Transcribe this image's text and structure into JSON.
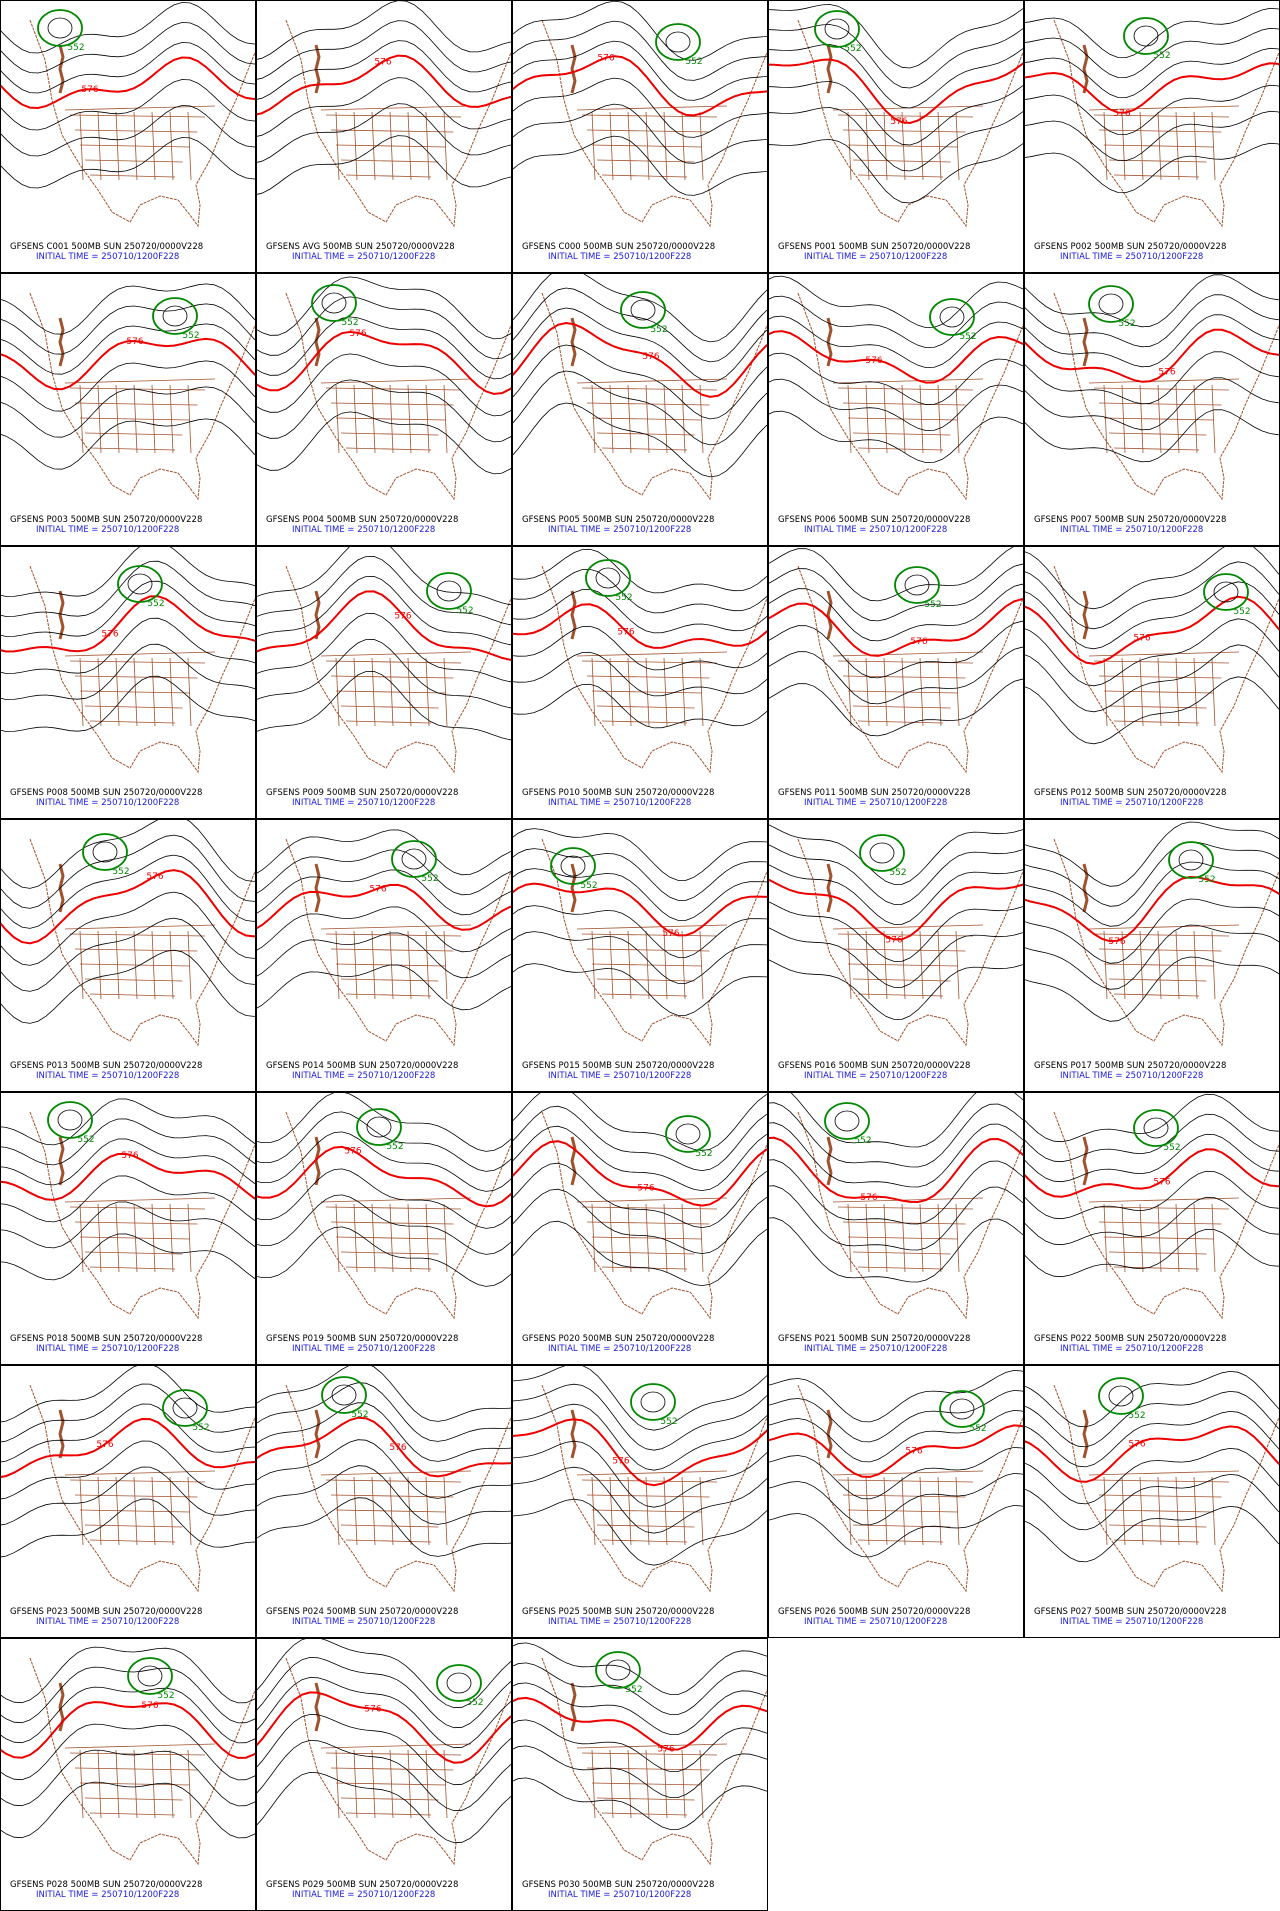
{
  "panels": [
    {
      "title": "GFSENS C001 500MB SUN 250720/0000V228",
      "init": "INITIAL TIME = 250710/1200F228",
      "contour_labels": [
        "576",
        "552"
      ]
    },
    {
      "title": "GFSENS AVG 500MB SUN 250720/0000V228",
      "init": "INITIAL TIME = 250710/1200F228",
      "contour_labels": [
        "576"
      ]
    },
    {
      "title": "GFSENS C000 500MB SUN 250720/0000V228",
      "init": "INITIAL TIME = 250710/1200F228",
      "contour_labels": [
        "576",
        "552"
      ]
    },
    {
      "title": "GFSENS P001 500MB SUN 250720/0000V228",
      "init": "INITIAL TIME = 250710/1200F228",
      "contour_labels": [
        "576",
        "552"
      ]
    },
    {
      "title": "GFSENS P002 500MB SUN 250720/0000V228",
      "init": "INITIAL TIME = 250710/1200F228",
      "contour_labels": [
        "576",
        "552"
      ]
    },
    {
      "title": "GFSENS P003 500MB SUN 250720/0000V228",
      "init": "INITIAL TIME = 250710/1200F228",
      "contour_labels": [
        "576",
        "552"
      ]
    },
    {
      "title": "GFSENS P004 500MB SUN 250720/0000V228",
      "init": "INITIAL TIME = 250710/1200F228",
      "contour_labels": [
        "576",
        "552"
      ]
    },
    {
      "title": "GFSENS P005 500MB SUN 250720/0000V228",
      "init": "INITIAL TIME = 250710/1200F228",
      "contour_labels": [
        "576",
        "552"
      ]
    },
    {
      "title": "GFSENS P006 500MB SUN 250720/0000V228",
      "init": "INITIAL TIME = 250710/1200F228",
      "contour_labels": [
        "576",
        "552"
      ]
    },
    {
      "title": "GFSENS P007 500MB SUN 250720/0000V228",
      "init": "INITIAL TIME = 250710/1200F228",
      "contour_labels": [
        "576",
        "552"
      ]
    },
    {
      "title": "GFSENS P008 500MB SUN 250720/0000V228",
      "init": "INITIAL TIME = 250710/1200F228",
      "contour_labels": [
        "576",
        "552"
      ]
    },
    {
      "title": "GFSENS P009 500MB SUN 250720/0000V228",
      "init": "INITIAL TIME = 250710/1200F228",
      "contour_labels": [
        "576",
        "552"
      ]
    },
    {
      "title": "GFSENS P010 500MB SUN 250720/0000V228",
      "init": "INITIAL TIME = 250710/1200F228",
      "contour_labels": [
        "576",
        "552"
      ]
    },
    {
      "title": "GFSENS P011 500MB SUN 250720/0000V228",
      "init": "INITIAL TIME = 250710/1200F228",
      "contour_labels": [
        "576",
        "552"
      ]
    },
    {
      "title": "GFSENS P012 500MB SUN 250720/0000V228",
      "init": "INITIAL TIME = 250710/1200F228",
      "contour_labels": [
        "576",
        "552"
      ]
    },
    {
      "title": "GFSENS P013 500MB SUN 250720/0000V228",
      "init": "INITIAL TIME = 250710/1200F228",
      "contour_labels": [
        "576",
        "552"
      ]
    },
    {
      "title": "GFSENS P014 500MB SUN 250720/0000V228",
      "init": "INITIAL TIME = 250710/1200F228",
      "contour_labels": [
        "576",
        "552"
      ]
    },
    {
      "title": "GFSENS P015 500MB SUN 250720/0000V228",
      "init": "INITIAL TIME = 250710/1200F228",
      "contour_labels": [
        "576",
        "552"
      ]
    },
    {
      "title": "GFSENS P016 500MB SUN 250720/0000V228",
      "init": "INITIAL TIME = 250710/1200F228",
      "contour_labels": [
        "576",
        "552"
      ]
    },
    {
      "title": "GFSENS P017 500MB SUN 250720/0000V228",
      "init": "INITIAL TIME = 250710/1200F228",
      "contour_labels": [
        "576",
        "552"
      ]
    },
    {
      "title": "GFSENS P018 500MB SUN 250720/0000V228",
      "init": "INITIAL TIME = 250710/1200F228",
      "contour_labels": [
        "576",
        "552"
      ]
    },
    {
      "title": "GFSENS P019 500MB SUN 250720/0000V228",
      "init": "INITIAL TIME = 250710/1200F228",
      "contour_labels": [
        "576",
        "552"
      ]
    },
    {
      "title": "GFSENS P020 500MB SUN 250720/0000V228",
      "init": "INITIAL TIME = 250710/1200F228",
      "contour_labels": [
        "576",
        "552"
      ]
    },
    {
      "title": "GFSENS P021 500MB SUN 250720/0000V228",
      "init": "INITIAL TIME = 250710/1200F228",
      "contour_labels": [
        "576",
        "552"
      ]
    },
    {
      "title": "GFSENS P022 500MB SUN 250720/0000V228",
      "init": "INITIAL TIME = 250710/1200F228",
      "contour_labels": [
        "576",
        "552"
      ]
    },
    {
      "title": "GFSENS P023 500MB SUN 250720/0000V228",
      "init": "INITIAL TIME = 250710/1200F228",
      "contour_labels": [
        "576",
        "552"
      ]
    },
    {
      "title": "GFSENS P024 500MB SUN 250720/0000V228",
      "init": "INITIAL TIME = 250710/1200F228",
      "contour_labels": [
        "576",
        "552"
      ]
    },
    {
      "title": "GFSENS P025 500MB SUN 250720/0000V228",
      "init": "INITIAL TIME = 250710/1200F228",
      "contour_labels": [
        "576",
        "552"
      ]
    },
    {
      "title": "GFSENS P026 500MB SUN 250720/0000V228",
      "init": "INITIAL TIME = 250710/1200F228",
      "contour_labels": [
        "576",
        "552"
      ]
    },
    {
      "title": "GFSENS P027 500MB SUN 250720/0000V228",
      "init": "INITIAL TIME = 250710/1200F228",
      "contour_labels": [
        "576",
        "552"
      ]
    },
    {
      "title": "GFSENS P028 500MB SUN 250720/0000V228",
      "init": "INITIAL TIME = 250710/1200F228",
      "contour_labels": [
        "576",
        "552"
      ]
    },
    {
      "title": "GFSENS P029 500MB SUN 250720/0000V228",
      "init": "INITIAL TIME = 250710/1200F228",
      "contour_labels": [
        "576",
        "552"
      ]
    },
    {
      "title": "GFSENS P030 500MB SUN 250720/0000V228",
      "init": "INITIAL TIME = 250710/1200F228",
      "contour_labels": [
        "576",
        "552"
      ]
    }
  ]
}
